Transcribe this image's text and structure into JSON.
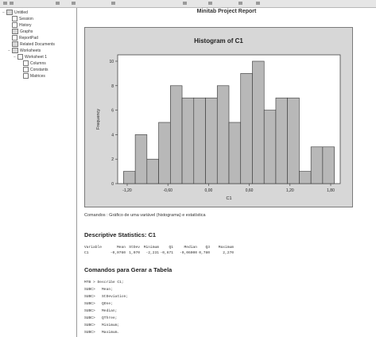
{
  "window": {
    "title": "Minitab Project Report"
  },
  "tree": {
    "items": [
      {
        "label": "Untitled",
        "icon": "folder-icon",
        "level": 0,
        "toggle": "−"
      },
      {
        "label": "Session",
        "icon": "document-icon",
        "level": 1,
        "toggle": ""
      },
      {
        "label": "History",
        "icon": "document-icon",
        "level": 1,
        "toggle": ""
      },
      {
        "label": "Graphs",
        "icon": "folder-icon",
        "level": 1,
        "toggle": ""
      },
      {
        "label": "ReportPad",
        "icon": "document-icon",
        "level": 1,
        "toggle": ""
      },
      {
        "label": "Related Documents",
        "icon": "folder-icon",
        "level": 1,
        "toggle": ""
      },
      {
        "label": "Worksheets",
        "icon": "folder-icon",
        "level": 1,
        "toggle": "−"
      },
      {
        "label": "Worksheet 1",
        "icon": "document-icon",
        "level": 2,
        "toggle": "−"
      },
      {
        "label": "Columns",
        "icon": "document-icon",
        "level": 3,
        "toggle": ""
      },
      {
        "label": "Constants",
        "icon": "document-icon",
        "level": 3,
        "toggle": ""
      },
      {
        "label": "Matrices",
        "icon": "document-icon",
        "level": 3,
        "toggle": ""
      }
    ]
  },
  "colors": {
    "bar_fill": "#b8b8b8",
    "frame_bg": "#d7d7d7",
    "plot_bg": "#ffffff"
  },
  "chart_data": {
    "type": "bar",
    "title": "Histogram of C1",
    "xlabel": "C1",
    "ylabel": "Frequency",
    "x_ticks": [
      "-1,20",
      "-0,60",
      "0,00",
      "0,60",
      "1,20",
      "1,80"
    ],
    "bin_values": [
      1,
      4,
      2,
      5,
      8,
      7,
      7,
      7,
      8,
      5,
      9,
      10,
      6,
      7,
      7,
      1,
      3,
      3
    ],
    "ylim": [
      0,
      10
    ],
    "y_ticks": [
      0,
      2,
      4,
      6,
      8,
      10
    ],
    "grid": false
  },
  "report": {
    "command_note": "Comandos : Gráfico de uma variável (histograma) e estatística",
    "desc_heading": "Descriptive Statistics: C1",
    "stats_header": [
      "Variable",
      "Mean",
      "StDev",
      "Minimum",
      "Q1",
      "Median",
      "Q3",
      "Maximum"
    ],
    "stats_row": [
      "C1",
      "-0,0760",
      "1,070",
      "-2,231",
      "-0,671",
      "-0,06000",
      "0,780",
      "2,270"
    ],
    "cmd_heading": "Comandos para Gerar a Tabela",
    "session_lines": [
      "MTB > Describe C1;",
      "SUBC>   Mean;",
      "SUBC>   StDeviation;",
      "SUBC>   QOne;",
      "SUBC>   Median;",
      "SUBC>   QThree;",
      "SUBC>   Minimum;",
      "SUBC>   Maximum."
    ]
  }
}
